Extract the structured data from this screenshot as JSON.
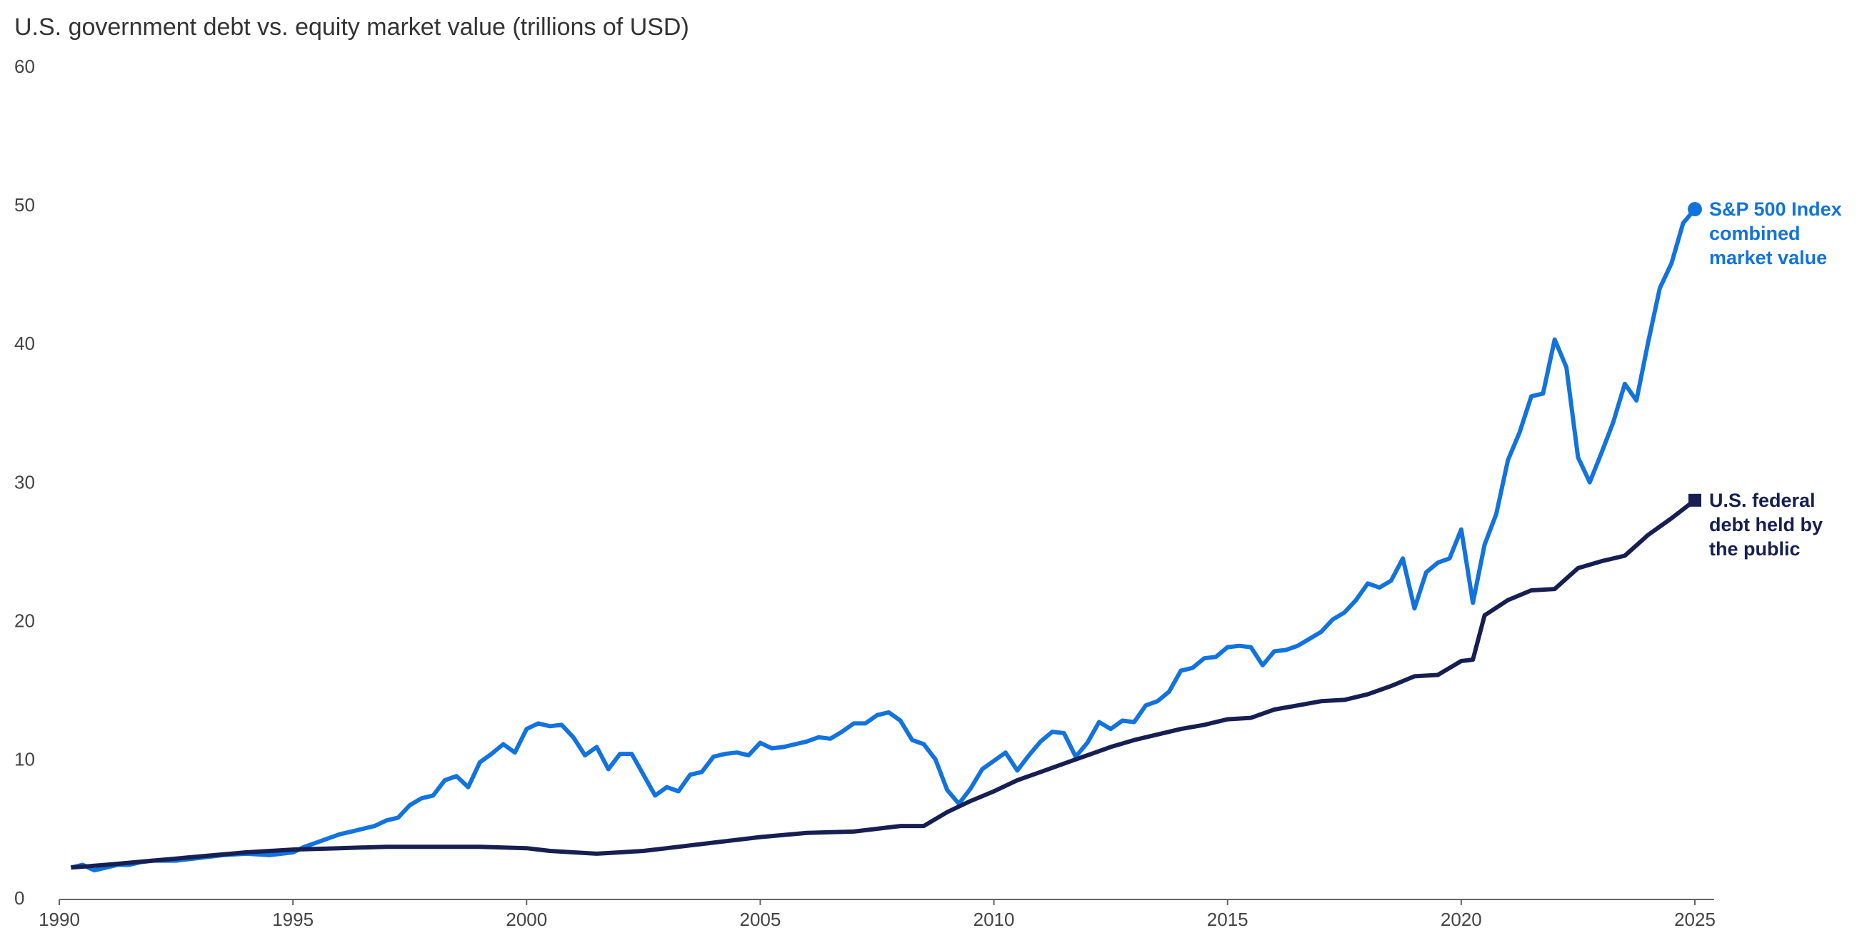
{
  "chart_data": {
    "type": "line",
    "title": "U.S. government debt vs. equity market value (trillions of USD)",
    "xlim": [
      1990,
      2025
    ],
    "xticks": [
      1990,
      1995,
      2000,
      2005,
      2010,
      2015,
      2020,
      2025
    ],
    "ylim": [
      0,
      60
    ],
    "yticks": [
      0,
      10,
      20,
      30,
      40,
      50,
      60
    ],
    "grid": false,
    "series": [
      {
        "name": "S&P 500 Index combined market value",
        "color": "#1273df",
        "marker": "circle",
        "x": [
          1990.25,
          1990.5,
          1990.75,
          1991,
          1991.25,
          1991.5,
          1991.75,
          1992,
          1992.5,
          1993,
          1993.5,
          1994,
          1994.5,
          1995,
          1995.25,
          1995.5,
          1995.75,
          1996,
          1996.25,
          1996.5,
          1996.75,
          1997,
          1997.25,
          1997.5,
          1997.75,
          1998,
          1998.25,
          1998.5,
          1998.75,
          1999,
          1999.25,
          1999.5,
          1999.75,
          2000,
          2000.25,
          2000.5,
          2000.75,
          2001,
          2001.25,
          2001.5,
          2001.75,
          2002,
          2002.25,
          2002.5,
          2002.75,
          2003,
          2003.25,
          2003.5,
          2003.75,
          2004,
          2004.25,
          2004.5,
          2004.75,
          2005,
          2005.25,
          2005.5,
          2005.75,
          2006,
          2006.25,
          2006.5,
          2006.75,
          2007,
          2007.25,
          2007.5,
          2007.75,
          2008,
          2008.25,
          2008.5,
          2008.75,
          2009,
          2009.25,
          2009.5,
          2009.75,
          2010,
          2010.25,
          2010.5,
          2010.75,
          2011,
          2011.25,
          2011.5,
          2011.75,
          2012,
          2012.25,
          2012.5,
          2012.75,
          2013,
          2013.25,
          2013.5,
          2013.75,
          2014,
          2014.25,
          2014.5,
          2014.75,
          2015,
          2015.25,
          2015.5,
          2015.75,
          2016,
          2016.25,
          2016.5,
          2016.75,
          2017,
          2017.25,
          2017.5,
          2017.75,
          2018,
          2018.25,
          2018.5,
          2018.75,
          2019,
          2019.25,
          2019.5,
          2019.75,
          2020,
          2020.25,
          2020.5,
          2020.75,
          2021,
          2021.25,
          2021.5,
          2021.75,
          2022,
          2022.25,
          2022.5,
          2022.75,
          2023,
          2023.25,
          2023.5,
          2023.75,
          2024,
          2024.25,
          2024.5,
          2024.75,
          2025
        ],
        "values": [
          2.3,
          2.5,
          2.1,
          2.3,
          2.5,
          2.5,
          2.7,
          2.8,
          2.8,
          3.0,
          3.2,
          3.3,
          3.2,
          3.4,
          3.8,
          4.1,
          4.4,
          4.7,
          4.9,
          5.1,
          5.3,
          5.7,
          5.9,
          6.8,
          7.3,
          7.5,
          8.6,
          8.9,
          8.1,
          9.9,
          10.5,
          11.2,
          10.6,
          12.3,
          12.7,
          12.5,
          12.6,
          11.7,
          10.4,
          11.0,
          9.4,
          10.5,
          10.5,
          9.0,
          7.5,
          8.1,
          7.8,
          9.0,
          9.2,
          10.3,
          10.5,
          10.6,
          10.4,
          11.3,
          10.9,
          11.0,
          11.2,
          11.4,
          11.7,
          11.6,
          12.1,
          12.7,
          12.7,
          13.3,
          13.5,
          12.9,
          11.5,
          11.2,
          10.1,
          7.9,
          6.9,
          8.0,
          9.4,
          10.0,
          10.6,
          9.3,
          10.4,
          11.4,
          12.1,
          12.0,
          10.3,
          11.3,
          12.8,
          12.3,
          12.9,
          12.8,
          14.0,
          14.3,
          15.0,
          16.5,
          16.7,
          17.4,
          17.5,
          18.2,
          18.3,
          18.2,
          16.9,
          17.9,
          18.0,
          18.3,
          18.8,
          19.3,
          20.2,
          20.7,
          21.6,
          22.8,
          22.5,
          23.0,
          24.6,
          21.0,
          23.6,
          24.3,
          24.6,
          26.7,
          21.4,
          25.6,
          27.8,
          31.7,
          33.7,
          36.3,
          36.5,
          40.4,
          38.4,
          31.9,
          30.1,
          32.2,
          34.4,
          37.2,
          36.0,
          40.2,
          44.1,
          45.9,
          48.8,
          49.8
        ]
      },
      {
        "name": "U.S. federal debt held by the public",
        "color": "#161f52",
        "marker": "square",
        "x": [
          1990.25,
          1991,
          1992,
          1993,
          1994,
          1995,
          1996,
          1997,
          1998,
          1999,
          2000,
          2000.5,
          2001,
          2001.5,
          2002,
          2002.5,
          2003,
          2004,
          2005,
          2006,
          2007,
          2008,
          2008.5,
          2009,
          2009.5,
          2010,
          2010.5,
          2011,
          2011.5,
          2012,
          2012.5,
          2013,
          2013.5,
          2014,
          2014.5,
          2015,
          2015.5,
          2016,
          2016.5,
          2017,
          2017.5,
          2018,
          2018.5,
          2019,
          2019.5,
          2020,
          2020.25,
          2020.5,
          2021,
          2021.5,
          2022,
          2022.5,
          2023,
          2023.5,
          2024,
          2024.5,
          2025
        ],
        "values": [
          2.3,
          2.5,
          2.8,
          3.1,
          3.4,
          3.6,
          3.7,
          3.8,
          3.8,
          3.8,
          3.7,
          3.5,
          3.4,
          3.3,
          3.4,
          3.5,
          3.7,
          4.1,
          4.5,
          4.8,
          4.9,
          5.3,
          5.3,
          6.3,
          7.1,
          7.8,
          8.6,
          9.2,
          9.8,
          10.4,
          11.0,
          11.5,
          11.9,
          12.3,
          12.6,
          13.0,
          13.1,
          13.7,
          14.0,
          14.3,
          14.4,
          14.8,
          15.4,
          16.1,
          16.2,
          17.2,
          17.3,
          20.5,
          21.6,
          22.3,
          22.4,
          23.9,
          24.4,
          24.8,
          26.3,
          27.5,
          28.8
        ]
      }
    ]
  }
}
